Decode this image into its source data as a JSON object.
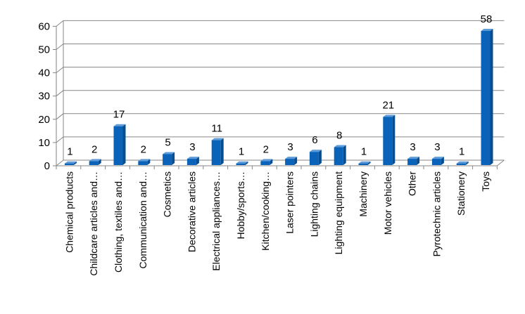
{
  "chart_data": {
    "type": "bar",
    "style": "3d-column",
    "title": "",
    "xlabel": "",
    "ylabel": "",
    "ylim": [
      0,
      60
    ],
    "yticks": [
      0,
      10,
      20,
      30,
      40,
      50,
      60
    ],
    "grid": true,
    "legend": "none",
    "categories": [
      "Chemical products",
      "Childcare articles and…",
      "Clothing, textiles and…",
      "Communication and…",
      "Cosmetics",
      "Decorative articles",
      "Electrical appliances…",
      "Hobby/sports…",
      "Kitchen/cooking…",
      "Laser pointers",
      "Lighting chains",
      "Lighting equipment",
      "Machinery",
      "Motor vehicles",
      "Other",
      "Pyrotechnic articles",
      "Stationery",
      "Toys"
    ],
    "values": [
      1,
      2,
      17,
      2,
      5,
      3,
      11,
      1,
      2,
      3,
      6,
      8,
      1,
      21,
      3,
      3,
      1,
      58
    ],
    "colors": {
      "bar_front": "#0A63B8",
      "bar_top": "#5E9BDA",
      "bar_side": "#084D8F",
      "grid": "#868686"
    }
  }
}
